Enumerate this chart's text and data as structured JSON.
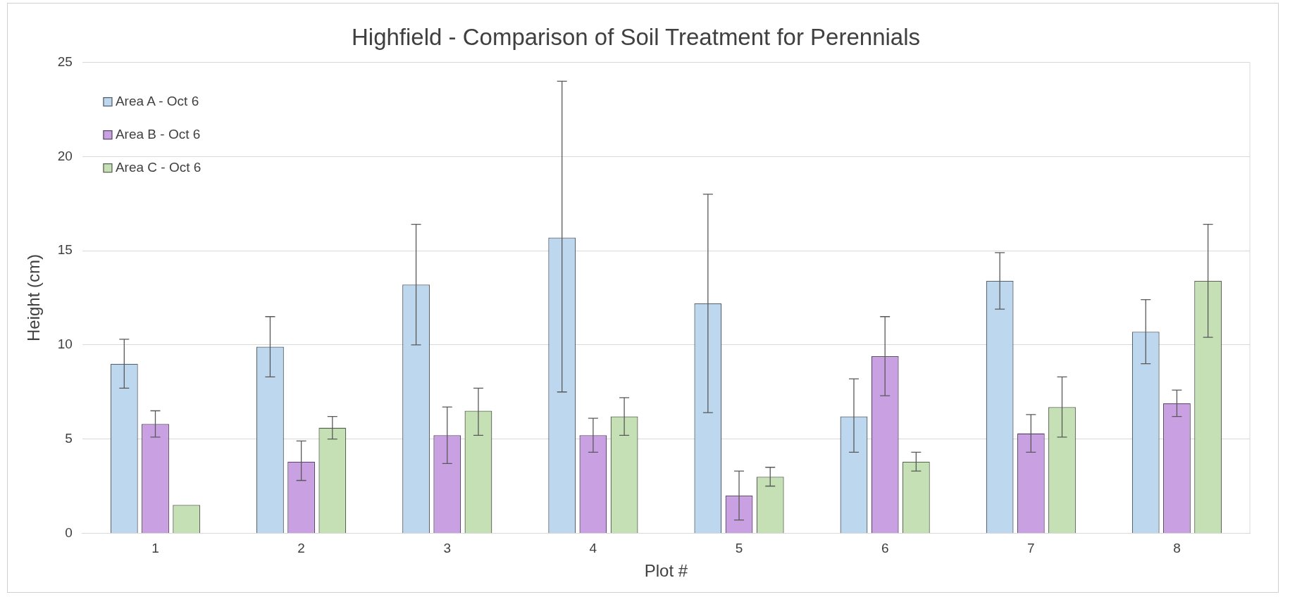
{
  "chart_data": {
    "type": "bar",
    "title": "Highfield - Comparison of Soil Treatment for Perennials",
    "xlabel": "Plot #",
    "ylabel": "Height (cm)",
    "categories": [
      "1",
      "2",
      "3",
      "4",
      "5",
      "6",
      "7",
      "8"
    ],
    "series": [
      {
        "name": "Area A - Oct 6",
        "color": "#bdd7ee",
        "values": [
          9.0,
          9.9,
          13.2,
          15.7,
          12.2,
          6.2,
          13.4,
          10.7
        ],
        "errors": [
          [
            7.7,
            10.3
          ],
          [
            8.3,
            11.5
          ],
          [
            10.0,
            16.4
          ],
          [
            7.5,
            24.0
          ],
          [
            6.4,
            18.0
          ],
          [
            4.3,
            8.2
          ],
          [
            11.9,
            14.9
          ],
          [
            9.0,
            12.4
          ]
        ]
      },
      {
        "name": "Area B - Oct 6",
        "color": "#c9a0e2",
        "values": [
          5.8,
          3.8,
          5.2,
          5.2,
          2.0,
          9.4,
          5.3,
          6.9
        ],
        "errors": [
          [
            5.1,
            6.5
          ],
          [
            2.8,
            4.9
          ],
          [
            3.7,
            6.7
          ],
          [
            4.3,
            6.1
          ],
          [
            0.7,
            3.3
          ],
          [
            7.3,
            11.5
          ],
          [
            4.3,
            6.3
          ],
          [
            6.2,
            7.6
          ]
        ]
      },
      {
        "name": "Area C - Oct 6",
        "color": "#c5e0b4",
        "values": [
          1.5,
          5.6,
          6.5,
          6.2,
          3.0,
          3.8,
          6.7,
          13.4
        ],
        "errors": [
          null,
          [
            5.0,
            6.2
          ],
          [
            5.2,
            7.7
          ],
          [
            5.2,
            7.2
          ],
          [
            2.5,
            3.5
          ],
          [
            3.3,
            4.3
          ],
          [
            5.1,
            8.3
          ],
          [
            10.4,
            16.4
          ]
        ]
      }
    ],
    "ylim": [
      0,
      25
    ],
    "yticks": [
      0,
      5,
      10,
      15,
      20,
      25
    ],
    "grid": "y",
    "legend": "top left"
  }
}
